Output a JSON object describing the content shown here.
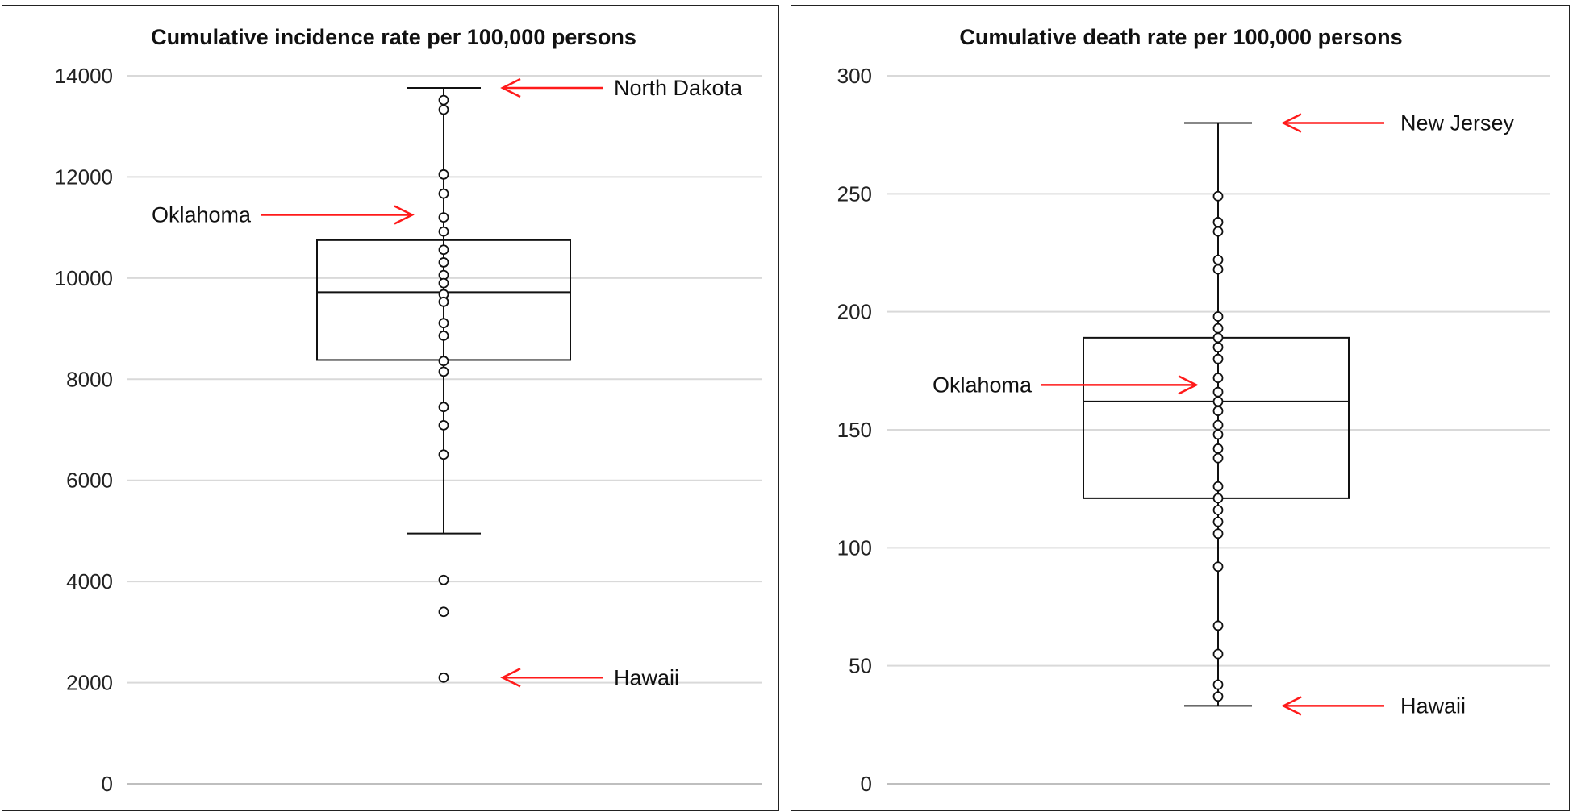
{
  "chart_data": [
    {
      "type": "box",
      "title": "Cumulative incidence rate per 100,000 persons",
      "ylim": [
        0,
        14000
      ],
      "yticks": [
        0,
        2000,
        4000,
        6000,
        8000,
        10000,
        12000,
        14000
      ],
      "grid": true,
      "box": {
        "whisker_low": 4950,
        "q1": 8380,
        "median": 9720,
        "q3": 10750,
        "whisker_high": 13760
      },
      "points": [
        13520,
        13330,
        12050,
        11670,
        11200,
        10920,
        10560,
        10310,
        10060,
        9900,
        9680,
        9530,
        9110,
        8860,
        8360,
        8150,
        7450,
        7090,
        6510,
        4030,
        3400,
        2100
      ],
      "annotations": [
        {
          "label": "North Dakota",
          "value": 13760,
          "side": "right"
        },
        {
          "label": "Oklahoma",
          "value": 11250,
          "side": "left"
        },
        {
          "label": "Hawaii",
          "value": 2100,
          "side": "right"
        }
      ]
    },
    {
      "type": "box",
      "title": "Cumulative death rate per 100,000 persons",
      "ylim": [
        0,
        300
      ],
      "yticks": [
        0,
        50,
        100,
        150,
        200,
        250,
        300
      ],
      "grid": true,
      "box": {
        "whisker_low": 33,
        "q1": 121,
        "median": 162,
        "q3": 189,
        "whisker_high": 280
      },
      "points": [
        249,
        238,
        234,
        222,
        218,
        198,
        193,
        189,
        185,
        180,
        172,
        166,
        162,
        158,
        152,
        148,
        142,
        138,
        126,
        121,
        116,
        111,
        106,
        92,
        67,
        55,
        42,
        37
      ],
      "annotations": [
        {
          "label": "New Jersey",
          "value": 280,
          "side": "right"
        },
        {
          "label": "Oklahoma",
          "value": 169,
          "side": "left"
        },
        {
          "label": "Hawaii",
          "value": 33,
          "side": "right"
        }
      ]
    }
  ],
  "colors": {
    "arrow": "#ff1a1a",
    "grid": "#d9d9d9",
    "ink": "#111111"
  }
}
